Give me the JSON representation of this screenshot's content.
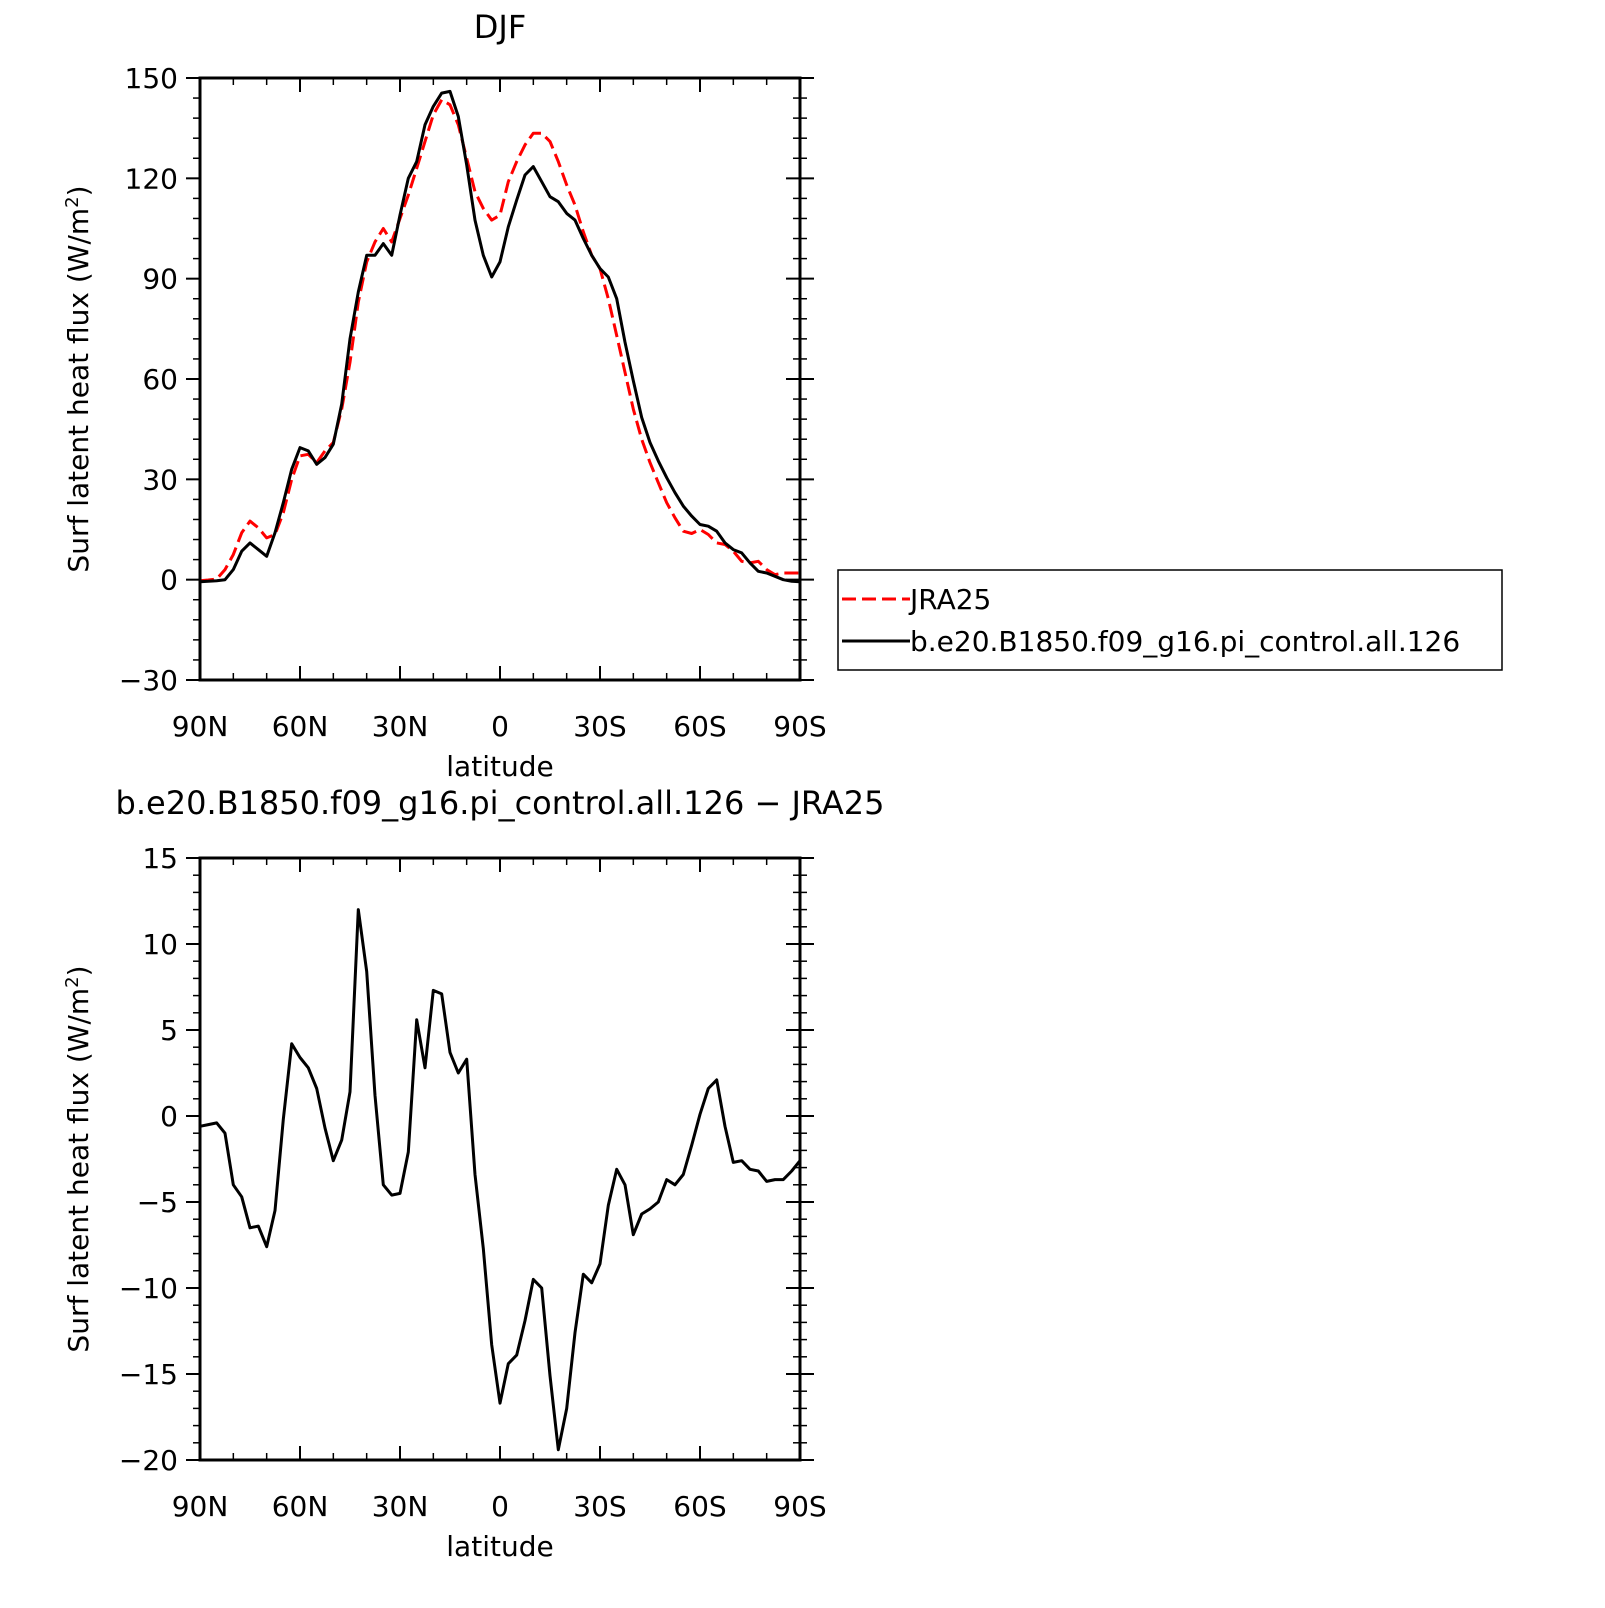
{
  "chart_data": [
    {
      "type": "line",
      "title": "DJF",
      "xlabel": "latitude",
      "ylabel": "Surf latent heat flux (W/m",
      "ylabel_superscript": "2",
      "ylabel_suffix": ")",
      "x_tick_labels": [
        "90N",
        "60N",
        "30N",
        "0",
        "30S",
        "60S",
        "90S"
      ],
      "x_ticks": [
        -90,
        -60,
        -30,
        0,
        30,
        60,
        90
      ],
      "xlim": [
        -90,
        90
      ],
      "ylim": [
        -30,
        150
      ],
      "y_ticks": [
        -30,
        0,
        30,
        60,
        90,
        120,
        150
      ],
      "y_tick_labels": [
        "−30",
        "0",
        "30",
        "60",
        "90",
        "120",
        "150"
      ],
      "legend_placement": "right",
      "x": [
        -90,
        -87.5,
        -85,
        -82.5,
        -80,
        -77.5,
        -75,
        -72.5,
        -70,
        -67.5,
        -65,
        -62.5,
        -60,
        -57.5,
        -55,
        -52.5,
        -50,
        -47.5,
        -45,
        -42.5,
        -40,
        -37.5,
        -35,
        -32.5,
        -30,
        -27.5,
        -25,
        -22.5,
        -20,
        -17.5,
        -15,
        -12.5,
        -10,
        -7.5,
        -5,
        -2.5,
        0,
        2.5,
        5,
        7.5,
        10,
        12.5,
        15,
        17.5,
        20,
        22.5,
        25,
        27.5,
        30,
        32.5,
        35,
        37.5,
        40,
        42.5,
        45,
        47.5,
        50,
        52.5,
        55,
        57.5,
        60,
        62.5,
        65,
        67.5,
        70,
        72.5,
        75,
        77.5,
        80,
        82.5,
        85,
        87.5,
        90
      ],
      "series": [
        {
          "name": "JRA25",
          "color": "#ff0000",
          "style": "dashed",
          "values": [
            -0.3,
            -0.1,
            0.2,
            3.0,
            7.5,
            14.0,
            17.5,
            15.5,
            12.5,
            13.5,
            20.0,
            30.0,
            37.0,
            37.5,
            35.0,
            38.5,
            41.0,
            51.0,
            65.0,
            83.0,
            95.0,
            101.0,
            105.0,
            101.0,
            108.0,
            115.0,
            123.0,
            131.0,
            139.0,
            143.5,
            142.0,
            136.0,
            126.0,
            116.0,
            111.0,
            107.5,
            109.0,
            119.0,
            125.0,
            130.0,
            133.5,
            133.5,
            131.0,
            125.0,
            118.0,
            112.0,
            104.0,
            97.0,
            93.0,
            84.0,
            73.0,
            62.0,
            51.0,
            42.0,
            35.0,
            29.0,
            23.0,
            18.5,
            14.5,
            13.8,
            15.0,
            13.5,
            11.0,
            10.5,
            8.5,
            5.5,
            5.0,
            5.5,
            3.0,
            1.5,
            2.0,
            2.0,
            2.0
          ]
        },
        {
          "name": "b.e20.B1850.f09_g16.pi_control.all.126",
          "color": "#000000",
          "style": "solid",
          "values": [
            -0.6,
            -0.5,
            -0.3,
            0.0,
            3.0,
            8.5,
            11.0,
            9.0,
            7.0,
            14.0,
            23.0,
            33.0,
            39.5,
            38.5,
            34.5,
            36.5,
            40.5,
            52.5,
            72.0,
            86.0,
            97.0,
            97.0,
            100.5,
            97.0,
            109.0,
            120.0,
            125.0,
            136.0,
            141.5,
            145.5,
            146.0,
            138.5,
            124.0,
            107.5,
            97.0,
            90.5,
            95.0,
            105.5,
            113.5,
            121.0,
            123.5,
            119.0,
            114.5,
            113.0,
            109.5,
            107.5,
            102.0,
            97.0,
            93.0,
            90.5,
            84.0,
            71.0,
            59.5,
            48.5,
            41.0,
            35.5,
            30.5,
            26.0,
            22.0,
            19.0,
            16.5,
            16.0,
            14.5,
            11.0,
            9.0,
            8.0,
            5.0,
            2.5,
            2.0,
            1.0,
            0.0,
            -0.5,
            -0.6
          ]
        }
      ]
    },
    {
      "type": "line",
      "title": "b.e20.B1850.f09_g16.pi_control.all.126 − JRA25",
      "xlabel": "latitude",
      "ylabel": "Surf latent heat flux (W/m",
      "ylabel_superscript": "2",
      "ylabel_suffix": ")",
      "x_tick_labels": [
        "90N",
        "60N",
        "30N",
        "0",
        "30S",
        "60S",
        "90S"
      ],
      "x_ticks": [
        -90,
        -60,
        -30,
        0,
        30,
        60,
        90
      ],
      "xlim": [
        -90,
        90
      ],
      "ylim": [
        -20,
        15
      ],
      "y_ticks": [
        -20,
        -15,
        -10,
        -5,
        0,
        5,
        10,
        15
      ],
      "y_tick_labels": [
        "−20",
        "−15",
        "−10",
        "−5",
        "0",
        "5",
        "10",
        "15"
      ],
      "x": [
        -90,
        -87.5,
        -85,
        -82.5,
        -80,
        -77.5,
        -75,
        -72.5,
        -70,
        -67.5,
        -65,
        -62.5,
        -60,
        -57.5,
        -55,
        -52.5,
        -50,
        -47.5,
        -45,
        -42.5,
        -40,
        -37.5,
        -35,
        -32.5,
        -30,
        -27.5,
        -25,
        -22.5,
        -20,
        -17.5,
        -15,
        -12.5,
        -10,
        -7.5,
        -5,
        -2.5,
        0,
        2.5,
        5,
        7.5,
        10,
        12.5,
        15,
        17.5,
        20,
        22.5,
        25,
        27.5,
        30,
        32.5,
        35,
        37.5,
        40,
        42.5,
        45,
        47.5,
        50,
        52.5,
        55,
        57.5,
        60,
        62.5,
        65,
        67.5,
        70,
        72.5,
        75,
        77.5,
        80,
        82.5,
        85,
        87.5,
        90
      ],
      "series": [
        {
          "color": "#000000",
          "style": "solid",
          "values": [
            -0.6,
            -0.5,
            -0.4,
            -1.0,
            -4.0,
            -4.7,
            -6.5,
            -6.4,
            -7.6,
            -5.5,
            -0.2,
            4.2,
            3.4,
            2.8,
            1.6,
            -0.7,
            -2.6,
            -1.4,
            1.4,
            12.0,
            8.4,
            1.2,
            -4.0,
            -4.6,
            -4.5,
            -2.1,
            5.6,
            2.8,
            7.3,
            7.1,
            3.7,
            2.5,
            3.3,
            -3.4,
            -7.7,
            -13.3,
            -16.7,
            -14.4,
            -13.9,
            -11.9,
            -9.5,
            -10.0,
            -15.1,
            -19.4,
            -17.0,
            -12.6,
            -9.2,
            -9.7,
            -8.6,
            -5.2,
            -3.1,
            -4.0,
            -6.9,
            -5.7,
            -5.4,
            -5.0,
            -3.7,
            -4.0,
            -3.4,
            -1.7,
            0.1,
            1.6,
            2.1,
            -0.6,
            -2.7,
            -2.6,
            -3.1,
            -3.2,
            -3.8,
            -3.7,
            -3.7,
            -3.2,
            -2.6
          ]
        }
      ]
    }
  ]
}
